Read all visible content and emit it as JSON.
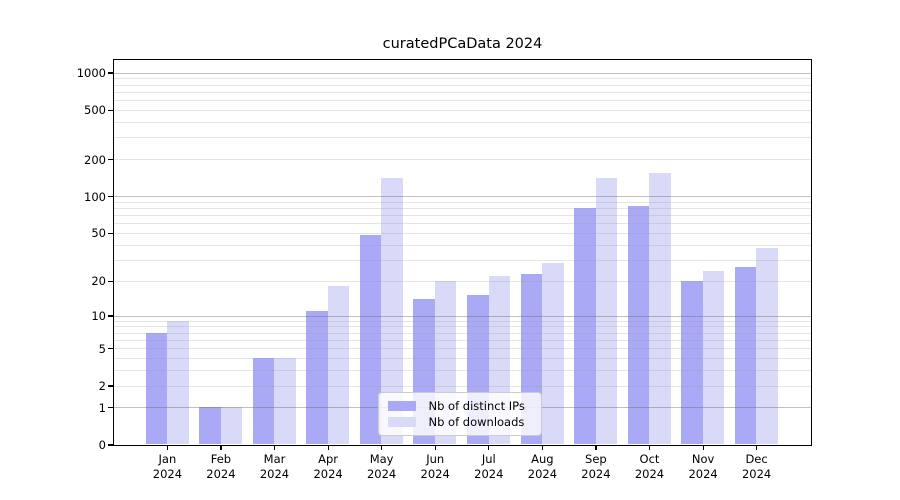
{
  "title": "curatedPCaData 2024",
  "legend": {
    "items": [
      {
        "label": "Nb of distinct IPs",
        "series": "ips"
      },
      {
        "label": "Nb of downloads",
        "series": "downloads"
      }
    ]
  },
  "colors": {
    "ips_bar": "#a9a9f6",
    "downloads_bar": "#d9d9f8",
    "axis": "#000000",
    "major_gridline": "rgba(105,105,105,0.42)",
    "minor_gridline": "rgba(150,150,150,0.25)",
    "legend_border": "#cccccc",
    "legend_background": "rgba(255,255,255,0.8)"
  },
  "chart_data": {
    "type": "bar",
    "title": "curatedPCaData 2024",
    "categories": [
      "Jan 2024",
      "Feb 2024",
      "Mar 2024",
      "Apr 2024",
      "May 2024",
      "Jun 2024",
      "Jul 2024",
      "Aug 2024",
      "Sep 2024",
      "Oct 2024",
      "Nov 2024",
      "Dec 2024"
    ],
    "series": [
      {
        "name": "Nb of distinct IPs",
        "key": "ips",
        "color": "#a9a9f6",
        "values": [
          7,
          1,
          4,
          11,
          48,
          14,
          15,
          23,
          80,
          84,
          20,
          26
        ]
      },
      {
        "name": "Nb of downloads",
        "key": "downloads",
        "color": "#d9d9f8",
        "values": [
          9,
          1,
          4,
          18,
          140,
          20,
          22,
          28,
          140,
          155,
          24,
          38
        ]
      }
    ],
    "xlabel": "",
    "ylabel": "",
    "yscale": "log1p",
    "ylim": [
      0,
      1270
    ],
    "yticks": [
      0,
      1,
      2,
      5,
      10,
      20,
      50,
      100,
      200,
      500,
      1000
    ],
    "major_gridlines": [
      1,
      10,
      100,
      1000
    ],
    "minor_gridlines": [
      2,
      3,
      4,
      5,
      6,
      7,
      8,
      9,
      20,
      30,
      40,
      50,
      60,
      70,
      80,
      90,
      200,
      300,
      400,
      500,
      600,
      700,
      800,
      900
    ],
    "grid": true,
    "legend_position": "inside lower-center",
    "bar_grouping": "paired, ips left / downloads right of month tick"
  }
}
